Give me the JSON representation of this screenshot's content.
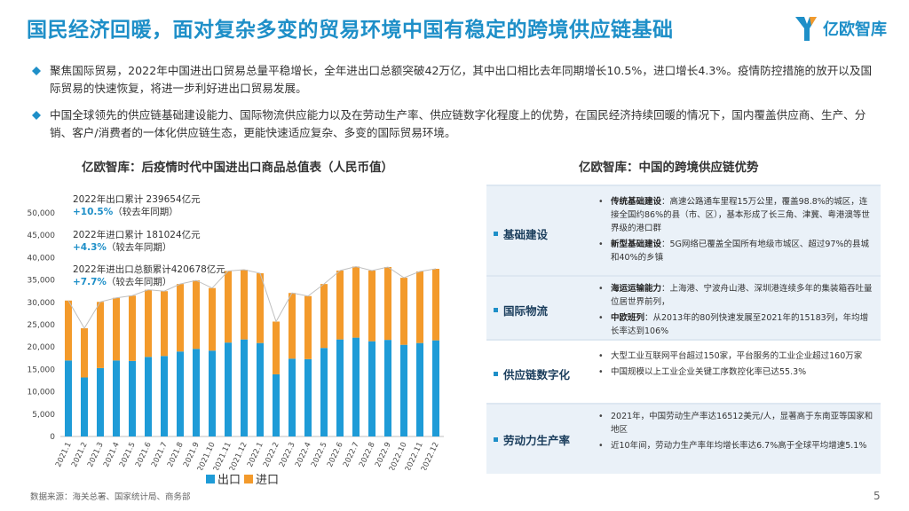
{
  "title": "国民经济回暖，面对复杂多变的贸易环境中国有稳定的跨境供应链基础",
  "logo": {
    "text": "亿欧智库",
    "icon": "yiou-logo-icon"
  },
  "bullets": [
    "聚焦国际贸易，2022年中国进出口贸易总量平稳增长，全年进出口总额突破42万亿，其中出口相比去年同期增长10.5%，进口增长4.3%。疫情防控措施的放开以及国际贸易的快速恢复，将进一步利好进出口贸易发展。",
    "中国全球领先的供应链基础建设能力、国际物流供应能力以及在劳动生产率、供应链数字化程度上的优势，在国民经济持续回暖的情况下，国内覆盖供应商、生产、分销、客户/消费者的一体化供应链生态，更能快速适应复杂、多变的国际贸易环境。"
  ],
  "chart_title": "亿欧智库：后疫情时代中国进出口商品总值表（人民币值）",
  "annotations": [
    {
      "line1": "2022年出口累计 239654亿元",
      "pct": "+10.5%",
      "note": "（较去年同期）"
    },
    {
      "line1": "2022年进口累计 181024亿元",
      "pct": "+4.3%",
      "note": "（较去年同期）"
    },
    {
      "line1": "2022年进出口总额累计420678亿元",
      "pct": "+7.7%",
      "note": "（较去年同期）"
    }
  ],
  "chart_data": {
    "type": "bar",
    "stacked": true,
    "categories": [
      "2021.1",
      "2021.2",
      "2021.3",
      "2021.4",
      "2021.5",
      "2021.6",
      "2021.7",
      "2021.8",
      "2021.9",
      "2021.10",
      "2021.11",
      "2021.12",
      "2022.1",
      "2022.2",
      "2022.3",
      "2022.4",
      "2022.5",
      "2022.6",
      "2022.7",
      "2022.8",
      "2022.9",
      "2022.10",
      "2022.11",
      "2022.12"
    ],
    "series": [
      {
        "name": "出口",
        "color": "#1E9BD7",
        "values": [
          17000,
          13200,
          15300,
          17000,
          16900,
          17800,
          18000,
          19000,
          19600,
          19200,
          21000,
          21700,
          20900,
          13900,
          17400,
          17300,
          19800,
          21700,
          22100,
          21300,
          21600,
          20500,
          20900,
          21500
        ]
      },
      {
        "name": "进口",
        "color": "#F39A2B",
        "values": [
          13400,
          11000,
          14800,
          14000,
          14600,
          15000,
          14500,
          15100,
          15300,
          14000,
          16000,
          15600,
          15600,
          11800,
          14700,
          14100,
          14300,
          15400,
          15900,
          15800,
          16300,
          15000,
          16000,
          16000
        ]
      }
    ],
    "line_values": [
      30400,
      24200,
      30100,
      31000,
      31500,
      32800,
      32500,
      34100,
      34900,
      33200,
      37000,
      37300,
      36500,
      25700,
      32100,
      31400,
      34100,
      37100,
      38000,
      37100,
      37900,
      35500,
      36900,
      37500
    ],
    "line_color": "#BFBFBF",
    "ylim": [
      0,
      50000
    ],
    "yticks": [
      0,
      5000,
      10000,
      15000,
      20000,
      25000,
      30000,
      35000,
      40000,
      45000,
      50000
    ],
    "ytick_labels": [
      "0",
      "5,000",
      "10,000",
      "15,000",
      "20,000",
      "25,000",
      "30,000",
      "35,000",
      "40,000",
      "45,000",
      "50,000"
    ],
    "grid": false,
    "legend": "bottom-center"
  },
  "legend": [
    {
      "label": "出口",
      "color": "#1E9BD7"
    },
    {
      "label": "进口",
      "color": "#F39A2B"
    }
  ],
  "advantages": {
    "title": "亿欧智库：中国的跨境供应链优势",
    "rows": [
      {
        "label": "基础建设",
        "items": [
          {
            "hl": "传统基础建设",
            "text": "：高速公路通车里程15万公里，覆盖98.8%的城区，连接全国约86%的县（市、区），基本形成了长三角、津冀、粤港澳等世界级的港口群"
          },
          {
            "hl": "新型基础建设",
            "text": "：5G网络已覆盖全国所有地级市城区、超过97%的县城和40%的乡镇"
          }
        ]
      },
      {
        "label": "国际物流",
        "items": [
          {
            "hl": "海运运输能力",
            "text": "：上海港、宁波舟山港、深圳港连续多年的集装箱吞吐量位居世界前列，"
          },
          {
            "hl": "中欧班列",
            "text": "：从2013年的80列快速发展至2021年的15183列，年均增长率达到106%"
          }
        ]
      },
      {
        "label": "供应链数字化",
        "items": [
          {
            "hl": "",
            "text": "大型工业互联网平台超过150家，平台服务的工业企业超过160万家"
          },
          {
            "hl": "",
            "text": "中国规模以上工业企业关键工序数控化率已达55.3%"
          }
        ]
      },
      {
        "label": "劳动力生产率",
        "items": [
          {
            "hl": "",
            "text": "2021年，中国劳动生产率达16512美元/人，显著高于东南亚等国家和地区"
          },
          {
            "hl": "",
            "text": "近10年间，劳动力生产率年均增长率达6.7%高于全球平均增速5.1%"
          }
        ]
      }
    ]
  },
  "source": "数据来源：海关总署、国家统计局、商务部",
  "page_number": "5"
}
